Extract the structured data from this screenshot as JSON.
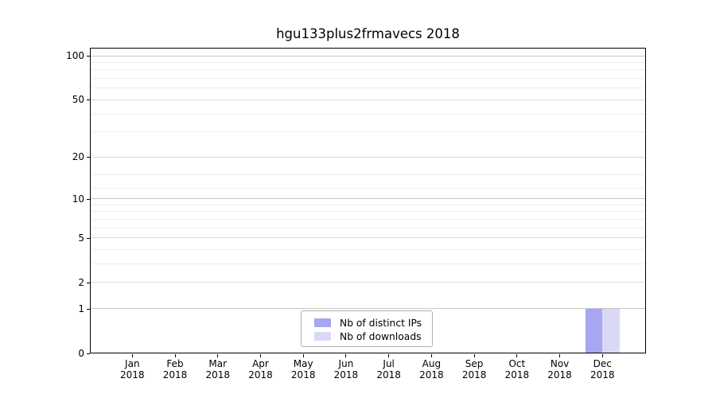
{
  "title": "hgu133plus2frmavecs 2018",
  "colors": {
    "distinct_ips_bar": "#a6a6f2",
    "downloads_bar": "#d9d9f7",
    "grid_major": "#c6c6c6",
    "grid_mid": "#dbdbdb",
    "grid_minor": "#ededed",
    "axis_spine": "#000000",
    "legend_border": "#b0b0b0"
  },
  "chart_data": {
    "type": "bar",
    "title": "hgu133plus2frmavecs 2018",
    "categories": [
      "Jan 2018",
      "Feb 2018",
      "Mar 2018",
      "Apr 2018",
      "May 2018",
      "Jun 2018",
      "Jul 2018",
      "Aug 2018",
      "Sep 2018",
      "Oct 2018",
      "Nov 2018",
      "Dec 2018"
    ],
    "series": [
      {
        "name": "Nb of distinct IPs",
        "color": "#a6a6f2",
        "values": [
          0,
          0,
          0,
          0,
          0,
          0,
          0,
          0,
          0,
          0,
          0,
          1
        ]
      },
      {
        "name": "Nb of downloads",
        "color": "#d9d9f7",
        "values": [
          0,
          0,
          0,
          0,
          0,
          0,
          0,
          0,
          0,
          0,
          0,
          1
        ]
      }
    ],
    "xlabel": "",
    "ylabel": "",
    "yscale": "log1p",
    "yticks": [
      0,
      1,
      2,
      5,
      10,
      20,
      50,
      100
    ],
    "yticks_minor": [
      3,
      4,
      6,
      7,
      8,
      9,
      12,
      15,
      30,
      40,
      60,
      70,
      80,
      90
    ],
    "ylim": [
      0,
      113
    ],
    "grid": true,
    "legend_position": "lower-center"
  }
}
